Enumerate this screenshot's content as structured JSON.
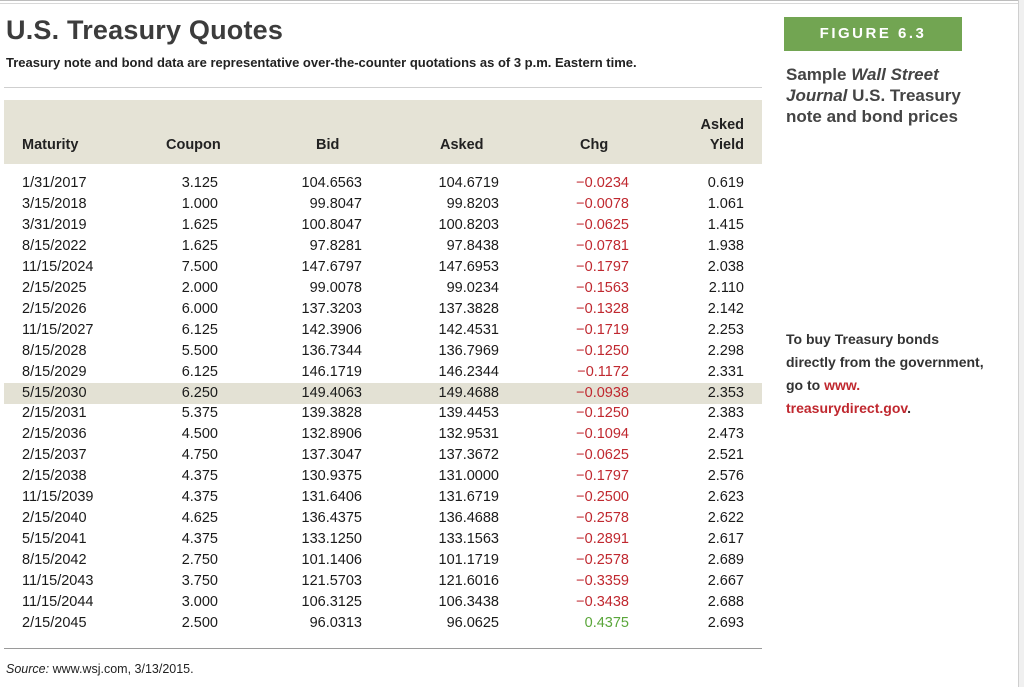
{
  "title": "U.S. Treasury Quotes",
  "subtitle": "Treasury note and bond data are representative over-the-counter quotations as of 3 p.m. Eastern time.",
  "figure_label": "FIGURE 6.3",
  "caption": {
    "prefix": "Sample ",
    "italic": "Wall Street Journal",
    "suffix": " U.S. Treasury note and bond prices"
  },
  "side_note": {
    "text": "To buy Treasury bonds directly from the government, go to ",
    "link": "www. treasurydirect.gov",
    "end": "."
  },
  "source": {
    "label": "Source:",
    "text": " www.wsj.com, 3/13/2015."
  },
  "columns": {
    "maturity": "Maturity",
    "coupon": "Coupon",
    "bid": "Bid",
    "asked": "Asked",
    "chg": "Chg",
    "yield_line1": "Asked",
    "yield_line2": "Yield"
  },
  "colors": {
    "negative": "#c0282f",
    "positive": "#5aa63a",
    "figure_label_bg": "#72a552",
    "header_band": "#e5e3d6"
  },
  "highlighted_row": 10,
  "rows": [
    {
      "maturity": "1/31/2017",
      "coupon": "3.125",
      "bid": "104.6563",
      "asked": "104.6719",
      "chg": "−0.0234",
      "yield": "0.619"
    },
    {
      "maturity": "3/15/2018",
      "coupon": "1.000",
      "bid": "99.8047",
      "asked": "99.8203",
      "chg": "−0.0078",
      "yield": "1.061"
    },
    {
      "maturity": "3/31/2019",
      "coupon": "1.625",
      "bid": "100.8047",
      "asked": "100.8203",
      "chg": "−0.0625",
      "yield": "1.415"
    },
    {
      "maturity": "8/15/2022",
      "coupon": "1.625",
      "bid": "97.8281",
      "asked": "97.8438",
      "chg": "−0.0781",
      "yield": "1.938"
    },
    {
      "maturity": "11/15/2024",
      "coupon": "7.500",
      "bid": "147.6797",
      "asked": "147.6953",
      "chg": "−0.1797",
      "yield": "2.038"
    },
    {
      "maturity": "2/15/2025",
      "coupon": "2.000",
      "bid": "99.0078",
      "asked": "99.0234",
      "chg": "−0.1563",
      "yield": "2.110"
    },
    {
      "maturity": "2/15/2026",
      "coupon": "6.000",
      "bid": "137.3203",
      "asked": "137.3828",
      "chg": "−0.1328",
      "yield": "2.142"
    },
    {
      "maturity": "11/15/2027",
      "coupon": "6.125",
      "bid": "142.3906",
      "asked": "142.4531",
      "chg": "−0.1719",
      "yield": "2.253"
    },
    {
      "maturity": "8/15/2028",
      "coupon": "5.500",
      "bid": "136.7344",
      "asked": "136.7969",
      "chg": "−0.1250",
      "yield": "2.298"
    },
    {
      "maturity": "8/15/2029",
      "coupon": "6.125",
      "bid": "146.1719",
      "asked": "146.2344",
      "chg": "−0.1172",
      "yield": "2.331"
    },
    {
      "maturity": "5/15/2030",
      "coupon": "6.250",
      "bid": "149.4063",
      "asked": "149.4688",
      "chg": "−0.0938",
      "yield": "2.353"
    },
    {
      "maturity": "2/15/2031",
      "coupon": "5.375",
      "bid": "139.3828",
      "asked": "139.4453",
      "chg": "−0.1250",
      "yield": "2.383"
    },
    {
      "maturity": "2/15/2036",
      "coupon": "4.500",
      "bid": "132.8906",
      "asked": "132.9531",
      "chg": "−0.1094",
      "yield": "2.473"
    },
    {
      "maturity": "2/15/2037",
      "coupon": "4.750",
      "bid": "137.3047",
      "asked": "137.3672",
      "chg": "−0.0625",
      "yield": "2.521"
    },
    {
      "maturity": "2/15/2038",
      "coupon": "4.375",
      "bid": "130.9375",
      "asked": "131.0000",
      "chg": "−0.1797",
      "yield": "2.576"
    },
    {
      "maturity": "11/15/2039",
      "coupon": "4.375",
      "bid": "131.6406",
      "asked": "131.6719",
      "chg": "−0.2500",
      "yield": "2.623"
    },
    {
      "maturity": "2/15/2040",
      "coupon": "4.625",
      "bid": "136.4375",
      "asked": "136.4688",
      "chg": "−0.2578",
      "yield": "2.622"
    },
    {
      "maturity": "5/15/2041",
      "coupon": "4.375",
      "bid": "133.1250",
      "asked": "133.1563",
      "chg": "−0.2891",
      "yield": "2.617"
    },
    {
      "maturity": "8/15/2042",
      "coupon": "2.750",
      "bid": "101.1406",
      "asked": "101.1719",
      "chg": "−0.2578",
      "yield": "2.689"
    },
    {
      "maturity": "11/15/2043",
      "coupon": "3.750",
      "bid": "121.5703",
      "asked": "121.6016",
      "chg": "−0.3359",
      "yield": "2.667"
    },
    {
      "maturity": "11/15/2044",
      "coupon": "3.000",
      "bid": "106.3125",
      "asked": "106.3438",
      "chg": "−0.3438",
      "yield": "2.688"
    },
    {
      "maturity": "2/15/2045",
      "coupon": "2.500",
      "bid": "96.0313",
      "asked": "96.0625",
      "chg": "0.4375",
      "yield": "2.693"
    }
  ]
}
